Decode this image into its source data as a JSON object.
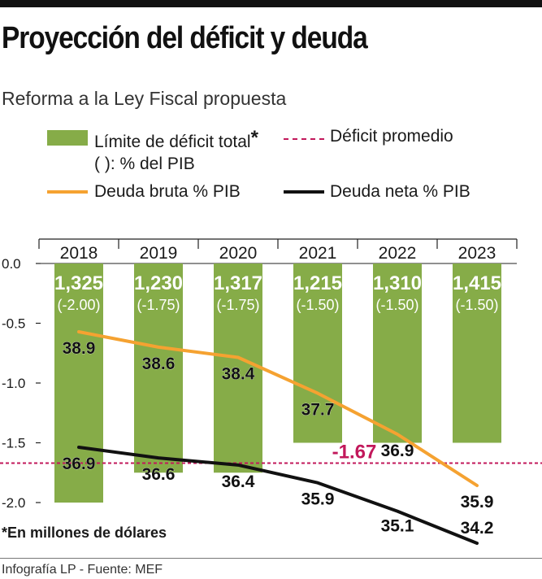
{
  "header": {
    "title": "Proyección del déficit y deuda",
    "subtitle": "Reforma a la Ley Fiscal propuesta"
  },
  "legend": {
    "bars_label": "Límite de déficit total",
    "bars_asterisk": "*",
    "bars_note": "( ): % del PIB",
    "dashed_label": "Déficit promedio",
    "orange_label": "Deuda bruta % PIB",
    "black_label": "Deuda neta % PIB"
  },
  "footnote": "*En millones de dólares",
  "source": "Infografía LP  - Fuente: MEF",
  "colors": {
    "bar": "#86ac48",
    "orange": "#f5a231",
    "black": "#111111",
    "dashed": "#c2185b"
  },
  "chart_data": {
    "type": "bar",
    "categories": [
      "2018",
      "2019",
      "2020",
      "2021",
      "2022",
      "2023"
    ],
    "ylim": [
      -2.0,
      0.0
    ],
    "yticks": [
      0.0,
      -0.5,
      -1.0,
      -1.5,
      -2.0
    ],
    "ytick_labels": [
      "0.0",
      "-0.5",
      "-1.0",
      "-1.5",
      "-2.0"
    ],
    "bars": {
      "values": [
        -2.0,
        -1.75,
        -1.75,
        -1.5,
        -1.5,
        -1.5
      ],
      "amount_labels": [
        "1,325",
        "1,230",
        "1,317",
        "1,215",
        "1,310",
        "1,415"
      ],
      "pct_labels": [
        "(-2.00)",
        "(-1.75)",
        "(-1.75)",
        "(-1.50)",
        "(-1.50)",
        "(-1.50)"
      ]
    },
    "average_deficit": {
      "value": -1.67,
      "label": "-1.67"
    },
    "series": [
      {
        "name": "Deuda bruta % PIB",
        "values": [
          38.9,
          38.6,
          38.4,
          37.7,
          36.9,
          35.9
        ],
        "labels": [
          "38.9",
          "38.6",
          "38.4",
          "37.7",
          "36.9",
          "35.9"
        ]
      },
      {
        "name": "Deuda neta % PIB",
        "values": [
          36.9,
          36.6,
          36.4,
          35.9,
          35.1,
          34.2
        ],
        "labels": [
          "36.9",
          "36.6",
          "36.4",
          "35.9",
          "35.1",
          "34.2"
        ]
      }
    ]
  }
}
